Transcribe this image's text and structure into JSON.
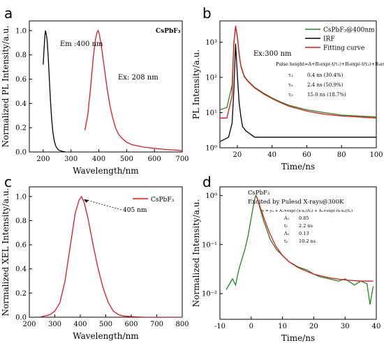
{
  "chart_data": [
    {
      "panel": "a",
      "type": "line",
      "annotation": "CsPbF₃",
      "xlabel": "Wavelength/nm",
      "ylabel": "Normalized PL Intensity/a.u.",
      "xlim": [
        150,
        700
      ],
      "ylim": [
        0,
        1.08
      ],
      "xticks": [
        200,
        300,
        400,
        500,
        600,
        700
      ],
      "yticks": [
        0.0,
        0.2,
        0.4,
        0.6,
        0.8,
        1.0
      ],
      "series": [
        {
          "name": "Em :400 nm",
          "color": "#000000",
          "x": [
            200,
            203,
            206,
            208,
            211,
            214,
            218,
            222,
            226,
            230,
            235,
            240,
            245,
            250,
            256,
            262,
            270,
            280
          ],
          "y": [
            0.72,
            0.85,
            0.96,
            1.0,
            0.97,
            0.92,
            0.78,
            0.6,
            0.42,
            0.28,
            0.16,
            0.09,
            0.05,
            0.03,
            0.015,
            0.01,
            0.005,
            0.0
          ]
        },
        {
          "name": "Ex: 208 nm",
          "color": "#e8161c",
          "x": [
            350,
            360,
            370,
            380,
            388,
            394,
            398,
            402,
            410,
            420,
            430,
            440,
            450,
            460,
            470,
            480,
            490,
            500,
            520,
            540,
            560,
            580,
            600,
            620,
            640,
            660,
            680,
            700
          ],
          "y": [
            0.18,
            0.3,
            0.52,
            0.78,
            0.93,
            0.99,
            1.0,
            0.97,
            0.86,
            0.69,
            0.52,
            0.38,
            0.28,
            0.2,
            0.15,
            0.12,
            0.1,
            0.08,
            0.06,
            0.05,
            0.04,
            0.035,
            0.03,
            0.025,
            0.02,
            0.018,
            0.015,
            0.01
          ]
        }
      ]
    },
    {
      "panel": "b",
      "type": "line",
      "annotation": "Ex:300 nm",
      "formula": "Pulse height=A+B₁exp(-t/τ₁)+B₂exp(-t/τ₂)+B₃exp(-t/τ₃)",
      "fit_table": [
        {
          "param": "τ₁",
          "value": "0.4 ns  (30.4%)"
        },
        {
          "param": "τ₂",
          "value": "2.4 ns  (50.9%)"
        },
        {
          "param": "τ₃",
          "value": "15.0 ns (18.7%)"
        }
      ],
      "xlabel": "Time/ns",
      "ylabel": "PL Intensity/a.u.",
      "xlim": [
        10,
        100
      ],
      "yscale": "log",
      "ylim": [
        1,
        4000
      ],
      "xticks": [
        20,
        40,
        60,
        80,
        100
      ],
      "yticks": [
        1,
        10,
        100,
        1000
      ],
      "ytick_labels": [
        "10⁰",
        "10¹",
        "10²",
        "10³"
      ],
      "legend": [
        "CsPbF₃@400nm",
        "IRF",
        "Fitting curve"
      ],
      "series": [
        {
          "name": "CsPbF₃@400nm",
          "color": "#1c8a1c",
          "x": [
            10,
            14,
            17,
            18,
            19,
            20,
            21,
            22,
            24,
            26,
            28,
            30,
            35,
            40,
            45,
            50,
            60,
            70,
            80,
            90,
            100
          ],
          "y": [
            12,
            14,
            60,
            900,
            2800,
            1500,
            500,
            220,
            110,
            80,
            65,
            52,
            36,
            26,
            20,
            16,
            12,
            10,
            8.5,
            8,
            7.5
          ]
        },
        {
          "name": "IRF",
          "color": "#000000",
          "x": [
            10,
            15,
            17,
            18,
            19,
            20,
            21,
            22,
            23,
            25,
            30,
            40,
            60,
            80,
            100
          ],
          "y": [
            1.5,
            2,
            5,
            40,
            900,
            120,
            20,
            8,
            4,
            3,
            2,
            2,
            2,
            2,
            2
          ]
        },
        {
          "name": "Fitting curve",
          "color": "#e8161c",
          "x": [
            10,
            14,
            17,
            18,
            19,
            20,
            21,
            22,
            24,
            26,
            28,
            30,
            35,
            40,
            45,
            50,
            60,
            70,
            80,
            90,
            100
          ],
          "y": [
            7,
            7,
            30,
            900,
            2900,
            1400,
            480,
            210,
            105,
            78,
            62,
            50,
            34,
            25,
            19,
            15,
            11,
            9,
            8,
            7.5,
            7
          ]
        }
      ]
    },
    {
      "panel": "c",
      "type": "line",
      "annotation": "405 nm",
      "xlabel": "Wavelength/nm",
      "ylabel": "Normalized XEL Intensity/a.u.",
      "xlim": [
        200,
        800
      ],
      "ylim": [
        0,
        1.08
      ],
      "xticks": [
        200,
        300,
        400,
        500,
        600,
        700,
        800
      ],
      "yticks": [
        0.0,
        0.2,
        0.4,
        0.6,
        0.8,
        1.0
      ],
      "legend": [
        "CsPbF₃"
      ],
      "series": [
        {
          "name": "CsPbF₃",
          "color": "#e8161c",
          "x": [
            240,
            260,
            280,
            300,
            320,
            340,
            360,
            380,
            395,
            405,
            415,
            430,
            450,
            470,
            490,
            510,
            530,
            550,
            570,
            600,
            650,
            700,
            750,
            800
          ],
          "y": [
            0.0,
            0.01,
            0.02,
            0.05,
            0.12,
            0.3,
            0.58,
            0.86,
            0.97,
            1.0,
            0.95,
            0.82,
            0.6,
            0.4,
            0.24,
            0.12,
            0.05,
            0.02,
            0.01,
            0.005,
            0.0,
            0.0,
            0.0,
            0.0
          ]
        }
      ]
    },
    {
      "panel": "d",
      "type": "line",
      "annotation": "CsPbF₃",
      "subtitle": "Excited by Pulesd X-rays@300K",
      "formula": "y = y₀ + A₁×exp(-(x-x₀)/t₁) + A₂×exp(-(x-x₀)/t₂)",
      "fit_table": [
        {
          "param": "A₁",
          "value": "0.85"
        },
        {
          "param": "t₁",
          "value": "2.2 ns"
        },
        {
          "param": "A₂",
          "value": "0.13"
        },
        {
          "param": "t₂",
          "value": "10.2 ns"
        }
      ],
      "xlabel": "Time/ns",
      "ylabel": "Normalized Intensity/a.u.",
      "xlim": [
        -10,
        40
      ],
      "yscale": "log",
      "ylim": [
        0.003,
        1.5
      ],
      "xticks": [
        -10,
        0,
        10,
        20,
        30,
        40
      ],
      "yticks": [
        0.01,
        0.1,
        1
      ],
      "ytick_labels": [
        "10⁻²",
        "10⁻¹",
        "10⁰"
      ],
      "series": [
        {
          "name": "data",
          "color": "#1c8a1c",
          "x": [
            -8,
            -6,
            -5,
            -4,
            -3,
            -2,
            -1,
            0,
            1,
            1.5,
            2,
            3,
            4,
            5,
            6,
            8,
            10,
            12,
            15,
            18,
            20,
            22,
            25,
            28,
            30,
            33,
            35,
            37,
            38,
            39
          ],
          "y": [
            0.012,
            0.02,
            0.015,
            0.03,
            0.05,
            0.08,
            0.15,
            0.35,
            0.8,
            1.0,
            0.85,
            0.5,
            0.3,
            0.2,
            0.13,
            0.08,
            0.06,
            0.045,
            0.035,
            0.03,
            0.025,
            0.022,
            0.02,
            0.018,
            0.02,
            0.015,
            0.018,
            0.016,
            0.006,
            0.014
          ]
        },
        {
          "name": "fit",
          "color": "#e8161c",
          "x": [
            1.5,
            2,
            3,
            4,
            5,
            6,
            8,
            10,
            12,
            15,
            18,
            20,
            25,
            30,
            35,
            39
          ],
          "y": [
            1.0,
            0.85,
            0.55,
            0.36,
            0.24,
            0.165,
            0.09,
            0.06,
            0.045,
            0.034,
            0.028,
            0.025,
            0.021,
            0.019,
            0.018,
            0.018
          ]
        }
      ]
    }
  ],
  "panel_labels": [
    "a",
    "b",
    "c",
    "d"
  ],
  "text": {
    "a_title": "CsPbF₃",
    "a_em": "Em :400 nm",
    "a_ex": "Ex: 208 nm",
    "b_ex": "Ex:300 nm",
    "b_formula": "Pulse height=A+B₁exp(-t/τ₁)+B₂exp(-t/τ₂)+B₃exp(-t/τ₃)",
    "c_peak": "405 nm",
    "d_title": "CsPbF₃",
    "d_sub": "Excited by Pulesd X-rays@300K",
    "d_formula": "y = y₀ + A₁×exp(-(x-x₀)/t₁) + A₂×exp(-(x-x₀)/t₂)"
  }
}
